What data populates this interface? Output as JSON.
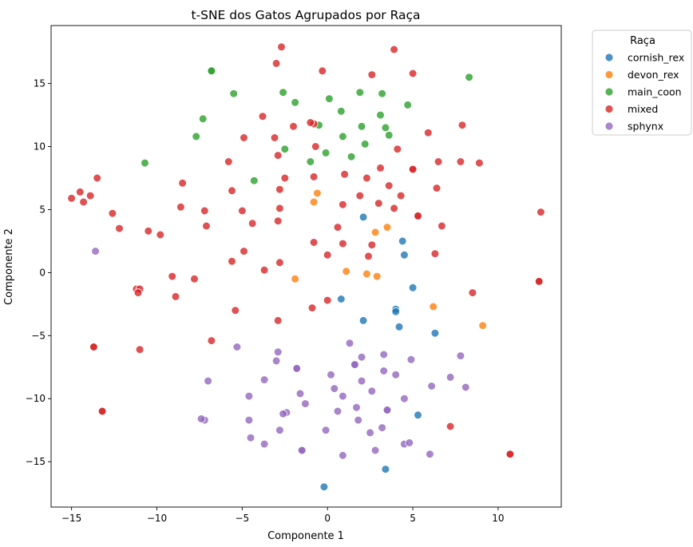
{
  "chart_data": {
    "type": "scatter",
    "title": "t-SNE dos Gatos Agrupados por Raça",
    "xlabel": "Componente 1",
    "ylabel": "Componente 2",
    "xlim": [
      -16.2,
      13.7
    ],
    "ylim": [
      -18.6,
      19.6
    ],
    "xticks": [
      -15,
      -10,
      -5,
      0,
      5,
      10
    ],
    "yticks": [
      -15,
      -10,
      -5,
      0,
      5,
      10,
      15
    ],
    "xtick_labels": [
      "−15",
      "−10",
      "−5",
      "0",
      "5",
      "10"
    ],
    "ytick_labels": [
      "−15",
      "−10",
      "−5",
      "0",
      "5",
      "10",
      "15"
    ],
    "grid": false,
    "legend": {
      "title": "Raça",
      "placement": "outside-top-right"
    },
    "series": [
      {
        "name": "cornish_rex",
        "color": "#1f77b4",
        "points": [
          [
            2.1,
            4.4
          ],
          [
            4.4,
            2.5
          ],
          [
            4.5,
            1.4
          ],
          [
            5.0,
            -1.2
          ],
          [
            0.8,
            -2.1
          ],
          [
            4.0,
            -2.9
          ],
          [
            4.0,
            -3.1
          ],
          [
            2.1,
            -3.8
          ],
          [
            4.2,
            -4.3
          ],
          [
            6.3,
            -4.8
          ],
          [
            5.3,
            -11.3
          ],
          [
            3.4,
            -15.6
          ],
          [
            -0.2,
            -17.0
          ]
        ]
      },
      {
        "name": "devon_rex",
        "color": "#ff7f0e",
        "points": [
          [
            -0.6,
            6.3
          ],
          [
            -0.8,
            5.6
          ],
          [
            3.5,
            3.6
          ],
          [
            2.8,
            3.2
          ],
          [
            1.1,
            0.1
          ],
          [
            2.3,
            -0.1
          ],
          [
            2.9,
            -0.3
          ],
          [
            -1.9,
            -0.5
          ],
          [
            6.2,
            -2.7
          ],
          [
            9.1,
            -4.2
          ]
        ]
      },
      {
        "name": "main_coon",
        "color": "#2ca02c",
        "points": [
          [
            -6.8,
            16.0
          ],
          [
            -6.8,
            16.0
          ],
          [
            -5.5,
            14.2
          ],
          [
            -2.6,
            14.3
          ],
          [
            -1.9,
            13.5
          ],
          [
            0.1,
            13.8
          ],
          [
            1.9,
            14.3
          ],
          [
            3.2,
            14.2
          ],
          [
            8.3,
            15.5
          ],
          [
            4.7,
            13.3
          ],
          [
            -7.3,
            12.2
          ],
          [
            0.8,
            12.8
          ],
          [
            3.1,
            12.5
          ],
          [
            -0.5,
            11.7
          ],
          [
            2.0,
            11.6
          ],
          [
            3.4,
            11.5
          ],
          [
            3.6,
            10.9
          ],
          [
            -7.7,
            10.8
          ],
          [
            0.9,
            10.8
          ],
          [
            2.2,
            10.2
          ],
          [
            -2.5,
            9.8
          ],
          [
            -0.1,
            9.5
          ],
          [
            1.4,
            9.2
          ],
          [
            -1.0,
            8.8
          ],
          [
            -10.7,
            8.7
          ],
          [
            -4.3,
            7.3
          ]
        ]
      },
      {
        "name": "mixed",
        "color": "#d62728",
        "points": [
          [
            -2.7,
            17.9
          ],
          [
            3.9,
            17.7
          ],
          [
            -3.0,
            16.6
          ],
          [
            -0.3,
            16.0
          ],
          [
            2.6,
            15.7
          ],
          [
            5.0,
            15.8
          ],
          [
            -3.8,
            12.4
          ],
          [
            -0.8,
            11.8
          ],
          [
            -2.0,
            11.6
          ],
          [
            -1.0,
            11.9
          ],
          [
            5.9,
            11.1
          ],
          [
            7.9,
            11.7
          ],
          [
            -4.9,
            10.7
          ],
          [
            -3.1,
            10.7
          ],
          [
            -0.7,
            10.0
          ],
          [
            4.1,
            9.8
          ],
          [
            -2.9,
            9.3
          ],
          [
            -5.8,
            8.8
          ],
          [
            6.5,
            8.8
          ],
          [
            7.8,
            8.8
          ],
          [
            8.9,
            8.7
          ],
          [
            3.1,
            8.3
          ],
          [
            5.0,
            8.2
          ],
          [
            5.0,
            8.2
          ],
          [
            1.0,
            7.8
          ],
          [
            -0.8,
            7.6
          ],
          [
            -2.5,
            7.5
          ],
          [
            2.3,
            7.5
          ],
          [
            -13.5,
            7.5
          ],
          [
            -8.5,
            7.1
          ],
          [
            3.6,
            6.9
          ],
          [
            6.4,
            6.7
          ],
          [
            -2.8,
            6.6
          ],
          [
            -5.6,
            6.5
          ],
          [
            -14.5,
            6.4
          ],
          [
            -13.9,
            6.1
          ],
          [
            4.3,
            6.1
          ],
          [
            1.9,
            6.1
          ],
          [
            -15.0,
            5.9
          ],
          [
            -14.3,
            5.6
          ],
          [
            3.0,
            5.5
          ],
          [
            0.9,
            5.4
          ],
          [
            -8.6,
            5.2
          ],
          [
            -2.8,
            5.1
          ],
          [
            3.9,
            5.1
          ],
          [
            -7.2,
            4.9
          ],
          [
            -5.0,
            4.9
          ],
          [
            -12.6,
            4.7
          ],
          [
            5.3,
            4.5
          ],
          [
            5.3,
            4.5
          ],
          [
            12.5,
            4.8
          ],
          [
            -2.9,
            4.1
          ],
          [
            -4.4,
            3.9
          ],
          [
            -7.1,
            3.7
          ],
          [
            6.7,
            3.7
          ],
          [
            0.6,
            3.6
          ],
          [
            -12.2,
            3.5
          ],
          [
            -10.5,
            3.3
          ],
          [
            -9.8,
            3.0
          ],
          [
            -0.8,
            2.4
          ],
          [
            0.9,
            2.3
          ],
          [
            2.6,
            2.2
          ],
          [
            -4.9,
            1.7
          ],
          [
            6.3,
            1.5
          ],
          [
            0.0,
            1.4
          ],
          [
            2.4,
            1.3
          ],
          [
            -5.6,
            0.9
          ],
          [
            -2.8,
            0.8
          ],
          [
            -3.7,
            0.2
          ],
          [
            -9.1,
            -0.3
          ],
          [
            -7.8,
            -0.5
          ],
          [
            12.4,
            -0.7
          ],
          [
            12.4,
            -0.7
          ],
          [
            -11.2,
            -1.3
          ],
          [
            -11.0,
            -1.3
          ],
          [
            -11.1,
            -1.6
          ],
          [
            8.5,
            -1.6
          ],
          [
            -8.9,
            -1.9
          ],
          [
            0.0,
            -2.2
          ],
          [
            -0.9,
            -2.8
          ],
          [
            -5.4,
            -3.0
          ],
          [
            -2.9,
            -3.8
          ],
          [
            -6.8,
            -5.4
          ],
          [
            -13.7,
            -5.9
          ],
          [
            -13.7,
            -5.9
          ],
          [
            -11.0,
            -6.1
          ],
          [
            -13.2,
            -11.0
          ],
          [
            -13.2,
            -11.0
          ],
          [
            7.2,
            -12.2
          ],
          [
            10.7,
            -14.4
          ],
          [
            10.7,
            -14.4
          ]
        ]
      },
      {
        "name": "sphynx",
        "color": "#9467bd",
        "points": [
          [
            -13.6,
            1.7
          ],
          [
            1.3,
            -5.6
          ],
          [
            -5.3,
            -5.9
          ],
          [
            -2.9,
            -6.3
          ],
          [
            3.3,
            -6.5
          ],
          [
            7.8,
            -6.6
          ],
          [
            2.0,
            -6.7
          ],
          [
            -3.0,
            -7.0
          ],
          [
            4.9,
            -6.9
          ],
          [
            1.6,
            -7.3
          ],
          [
            1.6,
            -7.3
          ],
          [
            -1.8,
            -7.6
          ],
          [
            -1.8,
            -7.6
          ],
          [
            3.3,
            -7.8
          ],
          [
            4.0,
            -8.1
          ],
          [
            0.2,
            -8.1
          ],
          [
            -3.7,
            -8.5
          ],
          [
            -7.0,
            -8.6
          ],
          [
            7.2,
            -8.3
          ],
          [
            2.0,
            -8.6
          ],
          [
            6.1,
            -9.0
          ],
          [
            8.1,
            -9.1
          ],
          [
            0.4,
            -9.2
          ],
          [
            2.6,
            -9.4
          ],
          [
            -1.6,
            -9.6
          ],
          [
            0.9,
            -9.8
          ],
          [
            4.5,
            -10.0
          ],
          [
            -4.6,
            -9.8
          ],
          [
            -1.3,
            -10.4
          ],
          [
            3.5,
            -10.9
          ],
          [
            3.5,
            -10.9
          ],
          [
            0.6,
            -11.0
          ],
          [
            1.7,
            -10.7
          ],
          [
            -2.4,
            -11.1
          ],
          [
            -2.6,
            -11.2
          ],
          [
            -7.2,
            -11.7
          ],
          [
            -7.4,
            -11.6
          ],
          [
            -4.6,
            -11.7
          ],
          [
            1.8,
            -11.7
          ],
          [
            3.2,
            -12.3
          ],
          [
            -0.1,
            -12.5
          ],
          [
            -2.8,
            -12.5
          ],
          [
            2.5,
            -12.7
          ],
          [
            -4.5,
            -13.1
          ],
          [
            -3.7,
            -13.6
          ],
          [
            4.5,
            -13.6
          ],
          [
            4.8,
            -13.5
          ],
          [
            -1.5,
            -14.1
          ],
          [
            -1.5,
            -14.1
          ],
          [
            2.8,
            -14.1
          ],
          [
            0.9,
            -14.5
          ],
          [
            6.0,
            -14.4
          ]
        ]
      }
    ]
  }
}
